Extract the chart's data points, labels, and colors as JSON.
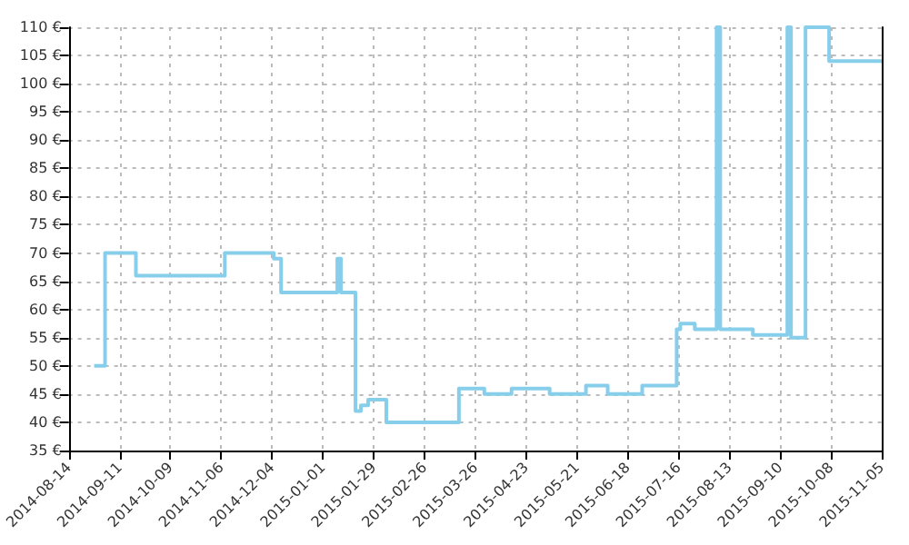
{
  "chart_data": {
    "type": "step",
    "color": "#87ceeb",
    "x": [
      "2014-08-28",
      "2014-09-03",
      "2014-09-20",
      "2014-11-08",
      "2014-12-05",
      "2014-12-09",
      "2015-01-09",
      "2015-01-11",
      "2015-01-19",
      "2015-01-22",
      "2015-01-26",
      "2015-02-05",
      "2015-03-17",
      "2015-03-31",
      "2015-04-15",
      "2015-05-06",
      "2015-05-26",
      "2015-06-07",
      "2015-06-26",
      "2015-07-15",
      "2015-07-17",
      "2015-07-25",
      "2015-08-06",
      "2015-08-08",
      "2015-08-26",
      "2015-09-14",
      "2015-09-16",
      "2015-09-24",
      "2015-10-07",
      "2015-11-05"
    ],
    "values": [
      50,
      70,
      66,
      70,
      69,
      63,
      69,
      63,
      42,
      43,
      44,
      40,
      46,
      45,
      46,
      45,
      46.5,
      45,
      46.5,
      56.5,
      57.5,
      56.5,
      110,
      56.5,
      55.5,
      110,
      55,
      110,
      104,
      104
    ],
    "xlim": [
      "2014-08-14",
      "2015-11-05"
    ],
    "xticks": [
      "2014-08-14",
      "2014-09-11",
      "2014-10-09",
      "2014-11-06",
      "2014-12-04",
      "2015-01-01",
      "2015-01-29",
      "2015-02-26",
      "2015-03-26",
      "2015-04-23",
      "2015-05-21",
      "2015-06-18",
      "2015-07-16",
      "2015-08-13",
      "2015-09-10",
      "2015-10-08",
      "2015-11-05"
    ],
    "ylim": [
      35,
      110
    ],
    "yticks": [
      {
        "value": 35,
        "label": "35 €"
      },
      {
        "value": 40,
        "label": "40 €"
      },
      {
        "value": 45,
        "label": "45 €"
      },
      {
        "value": 50,
        "label": "50 €"
      },
      {
        "value": 55,
        "label": "55 €"
      },
      {
        "value": 60,
        "label": "60 €"
      },
      {
        "value": 65,
        "label": "65 €"
      },
      {
        "value": 70,
        "label": "70 €"
      },
      {
        "value": 75,
        "label": "75 €"
      },
      {
        "value": 80,
        "label": "80 €"
      },
      {
        "value": 85,
        "label": "85 €"
      },
      {
        "value": 90,
        "label": "90 €"
      },
      {
        "value": 95,
        "label": "95 €"
      },
      {
        "value": 100,
        "label": "100 €"
      },
      {
        "value": 105,
        "label": "105 €"
      },
      {
        "value": 110,
        "label": "110 €"
      }
    ],
    "grid": true,
    "line_style": "solid"
  }
}
